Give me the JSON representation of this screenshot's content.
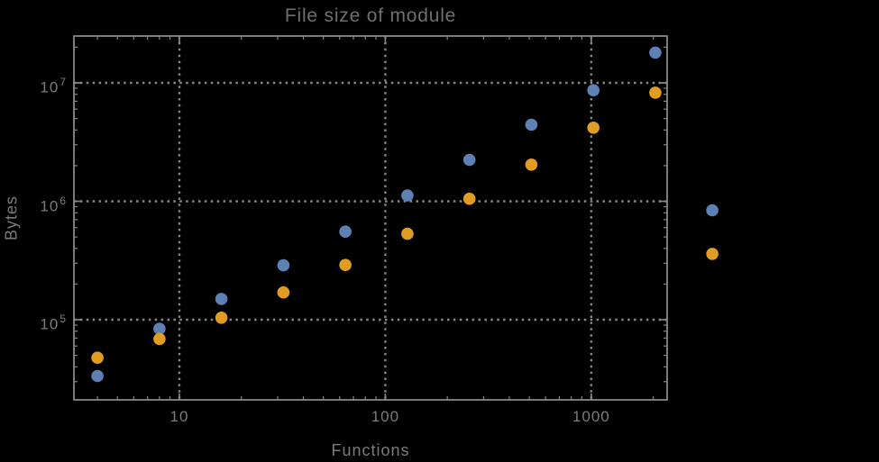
{
  "chart_data": {
    "type": "scatter",
    "title": "File size of module",
    "xlabel": "Functions",
    "ylabel": "Bytes",
    "x_scale": "log",
    "y_scale": "log",
    "xlim": [
      3.075,
      2336
    ],
    "ylim": [
      21050,
      24860000
    ],
    "grid": "dotted",
    "legend": "none",
    "background": "#000000",
    "frame_color": "#878787",
    "grid_color": "#878787",
    "label_color": "#7b7b7b",
    "x_ticks": [
      {
        "value": 10,
        "label": "10"
      },
      {
        "value": 100,
        "label": "100"
      },
      {
        "value": 1000,
        "label": "1000"
      }
    ],
    "y_ticks": [
      {
        "value": 100000,
        "base": "10",
        "exp": "5"
      },
      {
        "value": 1000000,
        "base": "10",
        "exp": "6"
      },
      {
        "value": 10000000,
        "base": "10",
        "exp": "7"
      }
    ],
    "series": [
      {
        "name": "module-size-blue",
        "color": "#5e81b5",
        "x": [
          4,
          8,
          16,
          32,
          64,
          128,
          256,
          512,
          1024,
          2048,
          3870
        ],
        "y": [
          33500,
          84000,
          150000,
          288000,
          554000,
          1120000,
          2240000,
          4430000,
          8660000,
          18000000,
          840000
        ]
      },
      {
        "name": "module-size-orange",
        "color": "#e19c24",
        "x": [
          4,
          8,
          16,
          32,
          64,
          128,
          256,
          512,
          1024,
          2048,
          3870
        ],
        "y": [
          47800,
          68700,
          104000,
          170000,
          290000,
          532000,
          1050000,
          2040000,
          4180000,
          8270000,
          360000
        ]
      }
    ]
  }
}
